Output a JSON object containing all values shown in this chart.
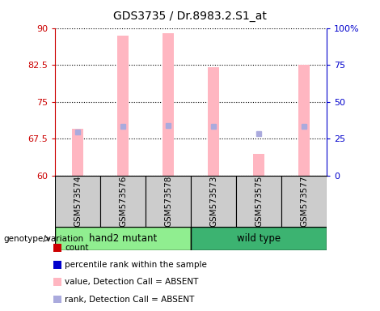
{
  "title": "GDS3735 / Dr.8983.2.S1_at",
  "samples": [
    "GSM573574",
    "GSM573576",
    "GSM573578",
    "GSM573573",
    "GSM573575",
    "GSM573577"
  ],
  "ylim_left": [
    60,
    90
  ],
  "ylim_right": [
    0,
    100
  ],
  "yticks_left": [
    60,
    67.5,
    75,
    82.5,
    90
  ],
  "ytick_labels_left": [
    "60",
    "67.5",
    "75",
    "82.5",
    "90"
  ],
  "yticks_right": [
    0,
    25,
    50,
    75,
    100
  ],
  "ytick_labels_right": [
    "0",
    "25",
    "50",
    "75",
    "100%"
  ],
  "bar_values": [
    69.5,
    88.5,
    89.0,
    82.0,
    64.5,
    82.5
  ],
  "bar_color": "#FFB6C1",
  "rank_markers": [
    68.8,
    70.0,
    70.2,
    70.0,
    68.5,
    70.0
  ],
  "rank_color": "#AAAADD",
  "bar_width": 0.25,
  "left_axis_color": "#CC0000",
  "right_axis_color": "#0000CC",
  "group_color_mutant": "#90EE90",
  "group_color_wild": "#3CB371",
  "legend_colors": [
    "#CC0000",
    "#0000CC",
    "#FFB6C1",
    "#AAAADD"
  ],
  "legend_labels": [
    "count",
    "percentile rank within the sample",
    "value, Detection Call = ABSENT",
    "rank, Detection Call = ABSENT"
  ]
}
